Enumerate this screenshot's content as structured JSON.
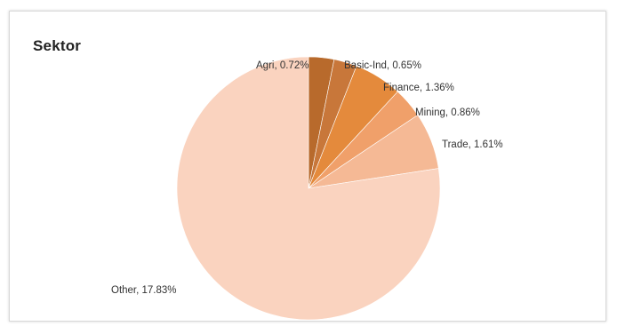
{
  "chart_data": {
    "type": "pie",
    "title": "Sektor",
    "categories": [
      "Agri",
      "Basic-Ind",
      "Finance",
      "Mining",
      "Trade",
      "Other"
    ],
    "values": [
      0.72,
      0.65,
      1.36,
      0.86,
      1.61,
      17.83
    ],
    "value_labels": [
      "0.72%",
      "0.65%",
      "1.36%",
      "0.86%",
      "1.61%",
      "17.83%"
    ],
    "labels": [
      "Agri, 0.72%",
      "Basic-Ind, 0.65%",
      "Finance, 1.36%",
      "Mining, 0.86%",
      "Trade, 1.61%",
      "Other, 17.83%"
    ],
    "colors": [
      "#b86a2c",
      "#c8773a",
      "#e48a3c",
      "#f0a06a",
      "#f5b995",
      "#fad3bf"
    ],
    "start_angle": "12 o'clock",
    "direction": "clockwise",
    "legend": "none",
    "labels_outside": true
  }
}
